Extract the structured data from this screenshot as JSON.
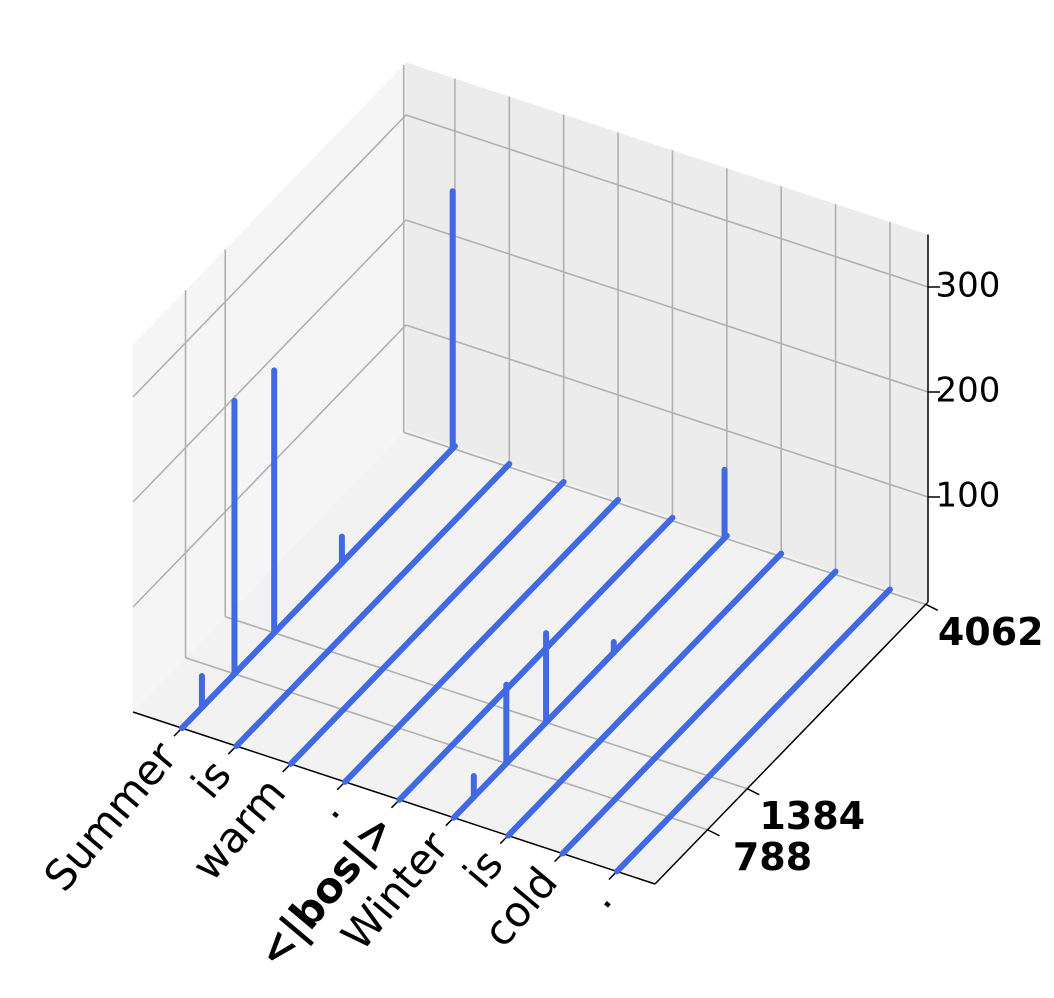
{
  "chart_data": {
    "type": "stem3d",
    "categories": [
      "Summer",
      "is",
      "warm",
      ".",
      "<|bos|>",
      "Winter",
      "is",
      "cold",
      "."
    ],
    "label_weights": [
      "normal",
      "normal",
      "normal",
      "normal",
      "bold",
      "normal",
      "normal",
      "normal",
      "normal"
    ],
    "x": [
      300,
      788,
      1384,
      2400,
      4062
    ],
    "values": [
      [
        30,
        260,
        250,
        25,
        245
      ],
      [
        0,
        0,
        0,
        0,
        0
      ],
      [
        0,
        0,
        0,
        0,
        0
      ],
      [
        0,
        0,
        0,
        0,
        0
      ],
      [
        0,
        0,
        0,
        0,
        0
      ],
      [
        20,
        75,
        85,
        10,
        65
      ],
      [
        0,
        0,
        0,
        0,
        0
      ],
      [
        0,
        0,
        0,
        0,
        0
      ],
      [
        0,
        0,
        0,
        0,
        0
      ]
    ],
    "ylim": [
      0,
      4096
    ],
    "yticks": [
      788,
      1384,
      4062
    ],
    "zlim": [
      0,
      350
    ],
    "zticks": [
      100,
      200,
      300
    ],
    "color": "#4169e1",
    "grid": true
  }
}
